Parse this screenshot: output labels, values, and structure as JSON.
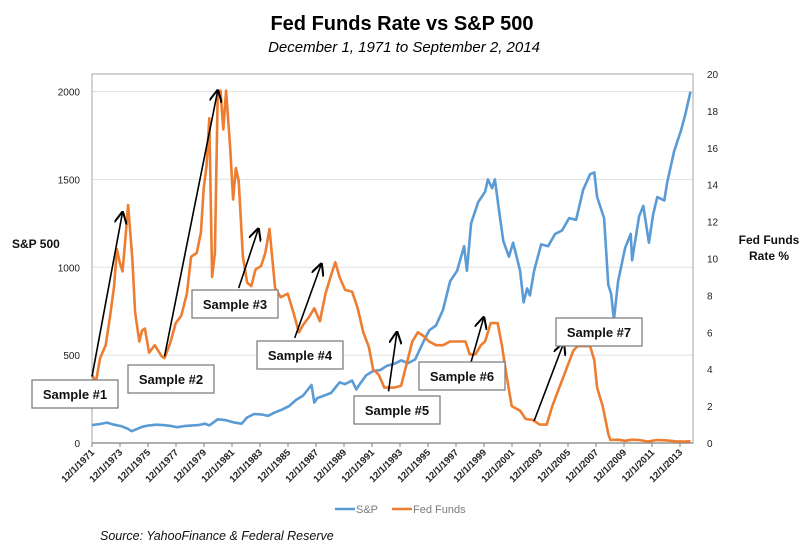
{
  "chart_data": {
    "type": "line",
    "title": "Fed Funds Rate vs S&P 500",
    "subtitle": "December 1, 1971 to September 2, 2014",
    "source": "Source: YahooFinance & Federal Reserve",
    "xlabel": "",
    "ylabel_left": "S&P 500",
    "ylabel_right": [
      "Fed Funds",
      "Rate %"
    ],
    "x_range": [
      1971.92,
      2014.67
    ],
    "ylim_left": [
      0,
      2100
    ],
    "ylim_right": [
      0,
      20
    ],
    "yticks_left": [
      0,
      500,
      1000,
      1500,
      2000
    ],
    "yticks_right": [
      0,
      2,
      4,
      6,
      8,
      10,
      12,
      14,
      16,
      18,
      20
    ],
    "xticks": [
      {
        "x": 1971.92,
        "label": "12/1/1971"
      },
      {
        "x": 1973.92,
        "label": "12/1/1973"
      },
      {
        "x": 1975.92,
        "label": "12/1/1975"
      },
      {
        "x": 1977.92,
        "label": "12/1/1977"
      },
      {
        "x": 1979.92,
        "label": "12/1/1979"
      },
      {
        "x": 1981.92,
        "label": "12/1/1981"
      },
      {
        "x": 1983.92,
        "label": "12/1/1983"
      },
      {
        "x": 1985.92,
        "label": "12/1/1985"
      },
      {
        "x": 1987.92,
        "label": "12/1/1987"
      },
      {
        "x": 1989.92,
        "label": "12/1/1989"
      },
      {
        "x": 1991.92,
        "label": "12/1/1991"
      },
      {
        "x": 1993.92,
        "label": "12/1/1993"
      },
      {
        "x": 1995.92,
        "label": "12/1/1995"
      },
      {
        "x": 1997.92,
        "label": "12/1/1997"
      },
      {
        "x": 1999.92,
        "label": "12/1/1999"
      },
      {
        "x": 2001.92,
        "label": "12/1/2001"
      },
      {
        "x": 2003.92,
        "label": "12/1/2003"
      },
      {
        "x": 2005.92,
        "label": "12/1/2005"
      },
      {
        "x": 2007.92,
        "label": "12/1/2007"
      },
      {
        "x": 2009.92,
        "label": "12/1/2009"
      },
      {
        "x": 2011.92,
        "label": "12/1/2011"
      },
      {
        "x": 2013.92,
        "label": "12/1/2013"
      }
    ],
    "grid": true,
    "legend": {
      "position": "bottom-right",
      "entries": [
        "S&P",
        "Fed Funds"
      ]
    },
    "series": [
      {
        "name": "S&P",
        "axis": "left",
        "color": "#5b9bd5",
        "points": [
          [
            1971.92,
            102
          ],
          [
            1972.5,
            108
          ],
          [
            1973.0,
            116
          ],
          [
            1973.5,
            104
          ],
          [
            1974.0,
            96
          ],
          [
            1974.5,
            80
          ],
          [
            1974.75,
            67
          ],
          [
            1975.0,
            75
          ],
          [
            1975.5,
            92
          ],
          [
            1976.0,
            100
          ],
          [
            1976.5,
            104
          ],
          [
            1977.0,
            102
          ],
          [
            1977.5,
            98
          ],
          [
            1978.0,
            90
          ],
          [
            1978.5,
            96
          ],
          [
            1979.0,
            99
          ],
          [
            1979.5,
            102
          ],
          [
            1980.0,
            110
          ],
          [
            1980.3,
            100
          ],
          [
            1980.9,
            135
          ],
          [
            1981.5,
            130
          ],
          [
            1982.0,
            118
          ],
          [
            1982.6,
            110
          ],
          [
            1983.0,
            145
          ],
          [
            1983.5,
            165
          ],
          [
            1984.0,
            163
          ],
          [
            1984.5,
            155
          ],
          [
            1985.0,
            175
          ],
          [
            1985.5,
            190
          ],
          [
            1986.0,
            210
          ],
          [
            1986.5,
            245
          ],
          [
            1987.0,
            270
          ],
          [
            1987.6,
            330
          ],
          [
            1987.8,
            230
          ],
          [
            1988.0,
            255
          ],
          [
            1988.5,
            270
          ],
          [
            1989.0,
            285
          ],
          [
            1989.6,
            345
          ],
          [
            1990.0,
            335
          ],
          [
            1990.5,
            355
          ],
          [
            1990.8,
            305
          ],
          [
            1991.0,
            330
          ],
          [
            1991.5,
            385
          ],
          [
            1992.0,
            410
          ],
          [
            1992.5,
            415
          ],
          [
            1993.0,
            440
          ],
          [
            1993.5,
            450
          ],
          [
            1994.0,
            470
          ],
          [
            1994.5,
            455
          ],
          [
            1995.0,
            475
          ],
          [
            1995.5,
            560
          ],
          [
            1996.0,
            640
          ],
          [
            1996.5,
            670
          ],
          [
            1997.0,
            760
          ],
          [
            1997.5,
            920
          ],
          [
            1998.0,
            980
          ],
          [
            1998.5,
            1120
          ],
          [
            1998.7,
            980
          ],
          [
            1999.0,
            1250
          ],
          [
            1999.5,
            1370
          ],
          [
            2000.0,
            1430
          ],
          [
            2000.2,
            1500
          ],
          [
            2000.5,
            1450
          ],
          [
            2000.7,
            1500
          ],
          [
            2001.0,
            1320
          ],
          [
            2001.3,
            1150
          ],
          [
            2001.7,
            1060
          ],
          [
            2002.0,
            1140
          ],
          [
            2002.5,
            980
          ],
          [
            2002.75,
            800
          ],
          [
            2003.0,
            880
          ],
          [
            2003.2,
            840
          ],
          [
            2003.5,
            980
          ],
          [
            2004.0,
            1130
          ],
          [
            2004.5,
            1120
          ],
          [
            2005.0,
            1190
          ],
          [
            2005.5,
            1210
          ],
          [
            2006.0,
            1280
          ],
          [
            2006.5,
            1270
          ],
          [
            2007.0,
            1440
          ],
          [
            2007.5,
            1530
          ],
          [
            2007.8,
            1540
          ],
          [
            2008.0,
            1400
          ],
          [
            2008.5,
            1280
          ],
          [
            2008.8,
            900
          ],
          [
            2009.0,
            850
          ],
          [
            2009.2,
            700
          ],
          [
            2009.5,
            920
          ],
          [
            2010.0,
            1110
          ],
          [
            2010.4,
            1190
          ],
          [
            2010.5,
            1040
          ],
          [
            2011.0,
            1290
          ],
          [
            2011.3,
            1350
          ],
          [
            2011.7,
            1140
          ],
          [
            2012.0,
            1300
          ],
          [
            2012.3,
            1400
          ],
          [
            2012.8,
            1380
          ],
          [
            2013.0,
            1480
          ],
          [
            2013.5,
            1660
          ],
          [
            2014.0,
            1780
          ],
          [
            2014.3,
            1870
          ],
          [
            2014.67,
            2000
          ]
        ]
      },
      {
        "name": "Fed Funds",
        "axis": "right",
        "color": "#ed7d31",
        "points": [
          [
            1971.92,
            3.7
          ],
          [
            1972.2,
            3.3
          ],
          [
            1972.5,
            4.6
          ],
          [
            1972.9,
            5.3
          ],
          [
            1973.2,
            6.8
          ],
          [
            1973.5,
            8.5
          ],
          [
            1973.7,
            10.5
          ],
          [
            1973.9,
            9.8
          ],
          [
            1974.1,
            9.3
          ],
          [
            1974.3,
            11.0
          ],
          [
            1974.5,
            12.9
          ],
          [
            1974.8,
            10.0
          ],
          [
            1975.0,
            7.1
          ],
          [
            1975.3,
            5.5
          ],
          [
            1975.5,
            6.1
          ],
          [
            1975.7,
            6.2
          ],
          [
            1976.0,
            4.9
          ],
          [
            1976.4,
            5.3
          ],
          [
            1976.9,
            4.7
          ],
          [
            1977.1,
            4.6
          ],
          [
            1977.5,
            5.4
          ],
          [
            1977.9,
            6.5
          ],
          [
            1978.3,
            6.9
          ],
          [
            1978.7,
            8.1
          ],
          [
            1979.0,
            10.1
          ],
          [
            1979.4,
            10.3
          ],
          [
            1979.7,
            11.4
          ],
          [
            1979.9,
            13.8
          ],
          [
            1980.1,
            15.0
          ],
          [
            1980.3,
            17.6
          ],
          [
            1980.5,
            9.0
          ],
          [
            1980.7,
            10.3
          ],
          [
            1980.9,
            18.9
          ],
          [
            1981.1,
            19.1
          ],
          [
            1981.3,
            17.0
          ],
          [
            1981.5,
            19.1
          ],
          [
            1981.8,
            15.9
          ],
          [
            1982.0,
            13.2
          ],
          [
            1982.2,
            14.9
          ],
          [
            1982.4,
            14.2
          ],
          [
            1982.7,
            10.1
          ],
          [
            1983.0,
            8.7
          ],
          [
            1983.3,
            8.5
          ],
          [
            1983.6,
            9.4
          ],
          [
            1984.0,
            9.6
          ],
          [
            1984.3,
            10.3
          ],
          [
            1984.6,
            11.6
          ],
          [
            1984.8,
            10.0
          ],
          [
            1985.0,
            8.4
          ],
          [
            1985.4,
            7.9
          ],
          [
            1985.9,
            8.1
          ],
          [
            1986.3,
            7.1
          ],
          [
            1986.7,
            6.0
          ],
          [
            1987.0,
            6.4
          ],
          [
            1987.4,
            6.8
          ],
          [
            1987.8,
            7.3
          ],
          [
            1988.2,
            6.6
          ],
          [
            1988.6,
            8.1
          ],
          [
            1989.0,
            9.1
          ],
          [
            1989.3,
            9.8
          ],
          [
            1989.6,
            9.0
          ],
          [
            1990.0,
            8.3
          ],
          [
            1990.5,
            8.2
          ],
          [
            1990.9,
            7.3
          ],
          [
            1991.3,
            6.0
          ],
          [
            1991.7,
            5.2
          ],
          [
            1992.0,
            4.0
          ],
          [
            1992.4,
            3.7
          ],
          [
            1992.8,
            3.0
          ],
          [
            1993.5,
            3.0
          ],
          [
            1994.0,
            3.1
          ],
          [
            1994.4,
            4.3
          ],
          [
            1994.8,
            5.5
          ],
          [
            1995.2,
            6.0
          ],
          [
            1995.6,
            5.8
          ],
          [
            1996.0,
            5.5
          ],
          [
            1996.5,
            5.3
          ],
          [
            1997.0,
            5.3
          ],
          [
            1997.5,
            5.5
          ],
          [
            1998.0,
            5.5
          ],
          [
            1998.6,
            5.5
          ],
          [
            1998.9,
            4.8
          ],
          [
            1999.3,
            4.8
          ],
          [
            1999.7,
            5.3
          ],
          [
            2000.0,
            5.5
          ],
          [
            2000.4,
            6.5
          ],
          [
            2000.9,
            6.5
          ],
          [
            2001.2,
            5.3
          ],
          [
            2001.5,
            3.8
          ],
          [
            2001.9,
            2.0
          ],
          [
            2002.5,
            1.75
          ],
          [
            2002.9,
            1.3
          ],
          [
            2003.4,
            1.25
          ],
          [
            2003.9,
            1.0
          ],
          [
            2004.4,
            1.0
          ],
          [
            2004.8,
            2.0
          ],
          [
            2005.3,
            3.0
          ],
          [
            2005.8,
            4.0
          ],
          [
            2006.3,
            5.0
          ],
          [
            2006.6,
            5.25
          ],
          [
            2007.5,
            5.25
          ],
          [
            2007.8,
            4.5
          ],
          [
            2008.0,
            3.0
          ],
          [
            2008.4,
            2.0
          ],
          [
            2008.8,
            0.5
          ],
          [
            2008.95,
            0.16
          ],
          [
            2009.5,
            0.18
          ],
          [
            2010.0,
            0.12
          ],
          [
            2010.5,
            0.18
          ],
          [
            2011.0,
            0.16
          ],
          [
            2011.6,
            0.08
          ],
          [
            2012.3,
            0.16
          ],
          [
            2013.0,
            0.14
          ],
          [
            2013.6,
            0.09
          ],
          [
            2014.2,
            0.08
          ],
          [
            2014.67,
            0.09
          ]
        ]
      }
    ],
    "annotations": [
      {
        "label": "Sample #1",
        "arrow_from": [
          1971.92,
          3.6
        ],
        "arrow_to": [
          1974.1,
          12.5
        ]
      },
      {
        "label": "Sample #2",
        "arrow_from": [
          1977.1,
          4.7
        ],
        "arrow_to": [
          1980.9,
          19.1
        ]
      },
      {
        "label": "Sample #3",
        "arrow_from": [
          1982.4,
          8.4
        ],
        "arrow_to": [
          1983.8,
          11.6
        ]
      },
      {
        "label": "Sample #4",
        "arrow_from": [
          1986.4,
          5.7
        ],
        "arrow_to": [
          1988.3,
          9.7
        ]
      },
      {
        "label": "Sample #5",
        "arrow_from": [
          1993.1,
          2.8
        ],
        "arrow_to": [
          1993.7,
          6.0
        ]
      },
      {
        "label": "Sample #6",
        "arrow_from": [
          1999.0,
          4.4
        ],
        "arrow_to": [
          1999.9,
          6.8
        ]
      },
      {
        "label": "Sample #7",
        "arrow_from": [
          2003.5,
          1.2
        ],
        "arrow_to": [
          2005.6,
          5.4
        ]
      }
    ]
  }
}
